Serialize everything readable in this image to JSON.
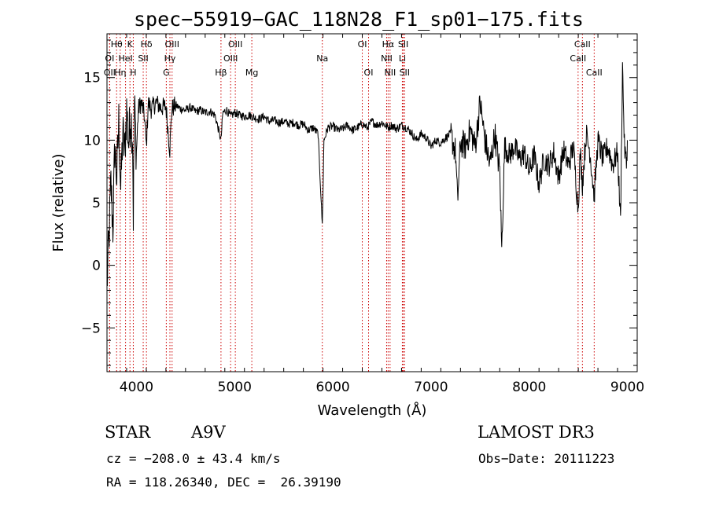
{
  "header": {
    "title": "spec−55919−GAC_118N28_F1_sp01−175.fits"
  },
  "info": {
    "class": "STAR",
    "subclass": "A9V",
    "survey": "LAMOST DR3",
    "cz": "cz = −208.0 ± 43.4 km/s",
    "obs_date": "Obs−Date: 20111223",
    "radec": "RA = 118.26340, DEC =  26.39190"
  },
  "colors": {
    "axis": "#000000",
    "spectrum": "#000000",
    "line_marker": "#cc0000"
  },
  "chart_data": {
    "type": "line",
    "title": "spec−55919−GAC_118N28_F1_sp01−175.fits",
    "xlabel": "Wavelength (Å)",
    "ylabel": "Flux (relative)",
    "xlim": [
      3700,
      9100
    ],
    "ylim": [
      -8.5,
      18.5
    ],
    "x_ticks": [
      4000,
      5000,
      6000,
      7000,
      8000,
      9000
    ],
    "y_ticks": [
      -5,
      0,
      5,
      10,
      15
    ],
    "series": [
      {
        "name": "spectrum",
        "points": [
          [
            3700,
            -1.5
          ],
          [
            3720,
            2.0
          ],
          [
            3740,
            6.5
          ],
          [
            3760,
            3.0
          ],
          [
            3780,
            9.5
          ],
          [
            3800,
            7.0
          ],
          [
            3820,
            11.5
          ],
          [
            3840,
            6.0
          ],
          [
            3860,
            10.5
          ],
          [
            3880,
            9.0
          ],
          [
            3900,
            12.5
          ],
          [
            3920,
            9.8
          ],
          [
            3940,
            12.0
          ],
          [
            3960,
            10.5
          ],
          [
            3968,
            4.0
          ],
          [
            3980,
            12.8
          ],
          [
            4000,
            9.0
          ],
          [
            4020,
            12.5
          ],
          [
            4050,
            13.0
          ],
          [
            4080,
            12.0
          ],
          [
            4101,
            9.5
          ],
          [
            4120,
            13.0
          ],
          [
            4150,
            12.5
          ],
          [
            4200,
            13.0
          ],
          [
            4250,
            12.6
          ],
          [
            4300,
            12.7
          ],
          [
            4340,
            9.2
          ],
          [
            4360,
            12.5
          ],
          [
            4400,
            12.8
          ],
          [
            4450,
            12.5
          ],
          [
            4500,
            12.4
          ],
          [
            4550,
            12.6
          ],
          [
            4600,
            12.3
          ],
          [
            4650,
            12.4
          ],
          [
            4700,
            12.2
          ],
          [
            4750,
            12.3
          ],
          [
            4800,
            12.0
          ],
          [
            4861,
            10.0
          ],
          [
            4880,
            12.2
          ],
          [
            4920,
            12.4
          ],
          [
            4960,
            11.9
          ],
          [
            5000,
            12.2
          ],
          [
            5050,
            12.0
          ],
          [
            5100,
            11.9
          ],
          [
            5150,
            12.0
          ],
          [
            5200,
            11.8
          ],
          [
            5250,
            11.7
          ],
          [
            5300,
            11.9
          ],
          [
            5350,
            11.5
          ],
          [
            5400,
            11.6
          ],
          [
            5450,
            11.4
          ],
          [
            5500,
            11.5
          ],
          [
            5550,
            11.3
          ],
          [
            5600,
            11.4
          ],
          [
            5650,
            11.2
          ],
          [
            5700,
            11.3
          ],
          [
            5750,
            10.8
          ],
          [
            5800,
            11.0
          ],
          [
            5850,
            10.5
          ],
          [
            5893,
            3.2
          ],
          [
            5910,
            10.0
          ],
          [
            5950,
            11.0
          ],
          [
            6000,
            11.1
          ],
          [
            6050,
            10.8
          ],
          [
            6100,
            10.9
          ],
          [
            6150,
            11.2
          ],
          [
            6200,
            10.8
          ],
          [
            6250,
            11.0
          ],
          [
            6300,
            11.3
          ],
          [
            6350,
            11.0
          ],
          [
            6400,
            11.5
          ],
          [
            6450,
            11.2
          ],
          [
            6500,
            11.4
          ],
          [
            6563,
            11.0
          ],
          [
            6600,
            11.2
          ],
          [
            6650,
            10.9
          ],
          [
            6700,
            11.2
          ],
          [
            6750,
            11.0
          ],
          [
            6800,
            10.6
          ],
          [
            6850,
            10.0
          ],
          [
            6900,
            10.5
          ],
          [
            6950,
            10.2
          ],
          [
            7000,
            9.5
          ],
          [
            7050,
            10.0
          ],
          [
            7100,
            9.8
          ],
          [
            7150,
            10.2
          ],
          [
            7200,
            10.5
          ],
          [
            7250,
            9.0
          ],
          [
            7270,
            5.0
          ],
          [
            7300,
            9.8
          ],
          [
            7350,
            9.5
          ],
          [
            7400,
            10.8
          ],
          [
            7450,
            9.5
          ],
          [
            7500,
            13.0
          ],
          [
            7550,
            10.0
          ],
          [
            7600,
            8.0
          ],
          [
            7650,
            10.5
          ],
          [
            7700,
            7.5
          ],
          [
            7720,
            1.2
          ],
          [
            7750,
            9.5
          ],
          [
            7800,
            8.8
          ],
          [
            7850,
            9.5
          ],
          [
            7900,
            8.5
          ],
          [
            7950,
            9.0
          ],
          [
            8000,
            7.5
          ],
          [
            8050,
            8.8
          ],
          [
            8100,
            6.5
          ],
          [
            8150,
            8.5
          ],
          [
            8200,
            8.0
          ],
          [
            8250,
            9.0
          ],
          [
            8300,
            7.0
          ],
          [
            8350,
            9.2
          ],
          [
            8400,
            8.0
          ],
          [
            8450,
            9.5
          ],
          [
            8498,
            4.5
          ],
          [
            8520,
            9.0
          ],
          [
            8542,
            6.5
          ],
          [
            8580,
            10.5
          ],
          [
            8620,
            9.0
          ],
          [
            8662,
            5.5
          ],
          [
            8700,
            10.0
          ],
          [
            8750,
            8.5
          ],
          [
            8800,
            9.5
          ],
          [
            8850,
            8.0
          ],
          [
            8900,
            9.0
          ],
          [
            8930,
            3.5
          ],
          [
            8950,
            16.0
          ],
          [
            8970,
            9.5
          ],
          [
            8990,
            8.0
          ],
          [
            9000,
            10.0
          ]
        ]
      }
    ],
    "lines": [
      {
        "label": "Hθ",
        "wave": 3798,
        "row": 0
      },
      {
        "label": "K",
        "wave": 3934,
        "row": 0
      },
      {
        "label": "Hδ",
        "wave": 4102,
        "row": 0
      },
      {
        "label": "OIII",
        "wave": 4363,
        "row": 0
      },
      {
        "label": "OIII",
        "wave": 5007,
        "row": 0
      },
      {
        "label": "OI",
        "wave": 6300,
        "row": 0
      },
      {
        "label": "Hα",
        "wave": 6563,
        "row": 0
      },
      {
        "label": "SII",
        "wave": 6717,
        "row": 0
      },
      {
        "label": "CaII",
        "wave": 8542,
        "row": 0
      },
      {
        "label": "OI",
        "wave": 3727,
        "row": 1
      },
      {
        "label": "HeI",
        "wave": 3889,
        "row": 1
      },
      {
        "label": "SII",
        "wave": 4069,
        "row": 1
      },
      {
        "label": "Hγ",
        "wave": 4341,
        "row": 1
      },
      {
        "label": "OIII",
        "wave": 4959,
        "row": 1
      },
      {
        "label": "Na",
        "wave": 5893,
        "row": 1
      },
      {
        "label": "NII",
        "wave": 6548,
        "row": 1
      },
      {
        "label": "Li",
        "wave": 6708,
        "row": 1
      },
      {
        "label": "CaII",
        "wave": 8498,
        "row": 1
      },
      {
        "label": "OII",
        "wave": 3727,
        "row": 2
      },
      {
        "label": "Hη",
        "wave": 3835,
        "row": 2
      },
      {
        "label": "H",
        "wave": 3968,
        "row": 2
      },
      {
        "label": "G",
        "wave": 4304,
        "row": 2
      },
      {
        "label": "Hβ",
        "wave": 4861,
        "row": 2
      },
      {
        "label": "Mg",
        "wave": 5175,
        "row": 2
      },
      {
        "label": "OI",
        "wave": 6364,
        "row": 2
      },
      {
        "label": "NII",
        "wave": 6583,
        "row": 2
      },
      {
        "label": "SII",
        "wave": 6731,
        "row": 2
      },
      {
        "label": "CaII",
        "wave": 8662,
        "row": 2
      }
    ]
  }
}
